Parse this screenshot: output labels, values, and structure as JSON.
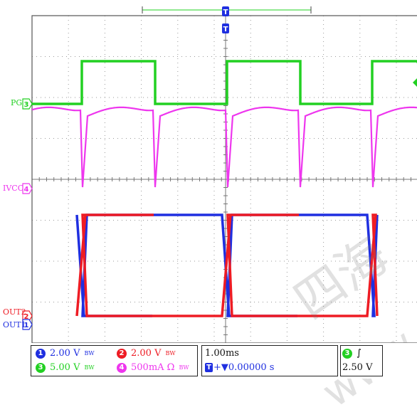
{
  "colors": {
    "ch1": "#1f2fe0",
    "ch2": "#ee1c24",
    "ch3": "#22d022",
    "ch4": "#ee36ee",
    "grid": "#9a9a9a",
    "frame": "#555555"
  },
  "markers": {
    "ch3_top": "3",
    "ch4_top": "4",
    "ch2_top": "2",
    "ch1_top": "1",
    "trigger_time": "T"
  },
  "channel_labels": {
    "pg": "PG",
    "ivcc": "IVCC",
    "out2": "OUT2",
    "out1": "OUT1"
  },
  "status_bar": {
    "ch1": {
      "badge": "1",
      "scale": "2.00 V",
      "bw": "BW"
    },
    "ch2": {
      "badge": "2",
      "scale": "2.00 V",
      "bw": "BW"
    },
    "ch3": {
      "badge": "3",
      "scale": "5.00 V",
      "bw": "BW"
    },
    "ch4": {
      "badge": "4",
      "scale": "500mA Ω",
      "bw": "BW"
    },
    "timebase": "1.00ms",
    "trigger_pos": "+▼0.00000 s",
    "trigger_icon": "T",
    "trigger_source": "3",
    "trigger_slope": "∫",
    "trigger_level": "2.50 V"
  },
  "watermark": {
    "line1": "四海",
    "line2": "www.gc"
  }
}
